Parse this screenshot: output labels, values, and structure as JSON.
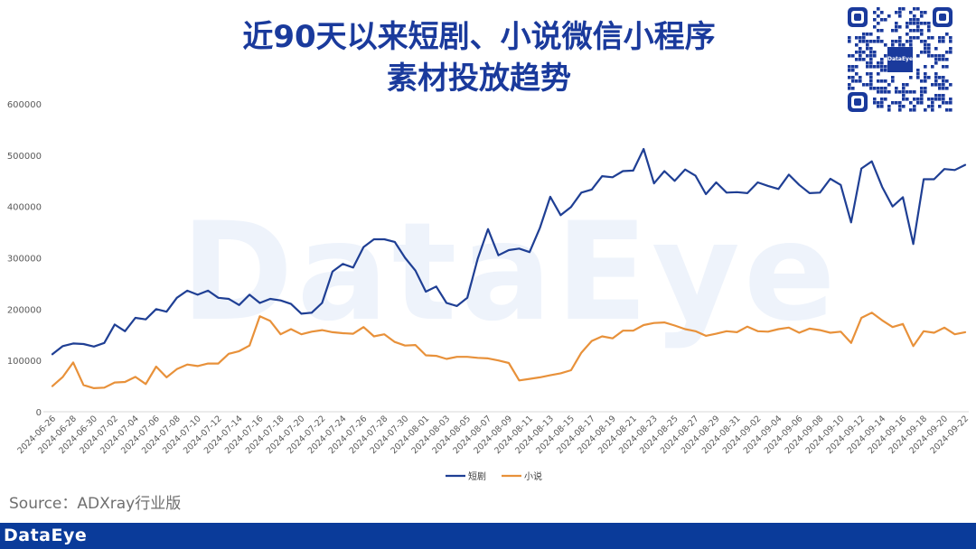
{
  "title_line1": "近90天以来短剧、小说微信小程序",
  "title_line2": "素材投放趋势",
  "watermark": "DataEye",
  "qr_label": "DataEye",
  "source": "Source：ADXray行业版",
  "footer_brand": "DataEye",
  "colors": {
    "primary": "#1a3a9c",
    "short_drama": "#1f3f94",
    "novel": "#e8913a",
    "footer": "#0a3b9a"
  },
  "chart_data": {
    "type": "line",
    "ylim": [
      0,
      600000
    ],
    "yticks": [
      0,
      100000,
      200000,
      300000,
      400000,
      500000,
      600000
    ],
    "grid": false,
    "legend_position": "bottom",
    "x": [
      "2024-06-26",
      "2024-06-27",
      "2024-06-28",
      "2024-06-29",
      "2024-06-30",
      "2024-07-01",
      "2024-07-02",
      "2024-07-03",
      "2024-07-04",
      "2024-07-05",
      "2024-07-06",
      "2024-07-07",
      "2024-07-08",
      "2024-07-09",
      "2024-07-10",
      "2024-07-11",
      "2024-07-12",
      "2024-07-13",
      "2024-07-14",
      "2024-07-15",
      "2024-07-16",
      "2024-07-17",
      "2024-07-18",
      "2024-07-19",
      "2024-07-20",
      "2024-07-21",
      "2024-07-22",
      "2024-07-23",
      "2024-07-24",
      "2024-07-25",
      "2024-07-26",
      "2024-07-27",
      "2024-07-28",
      "2024-07-29",
      "2024-07-30",
      "2024-07-31",
      "2024-08-01",
      "2024-08-02",
      "2024-08-03",
      "2024-08-04",
      "2024-08-05",
      "2024-08-06",
      "2024-08-07",
      "2024-08-08",
      "2024-08-09",
      "2024-08-10",
      "2024-08-11",
      "2024-08-12",
      "2024-08-13",
      "2024-08-14",
      "2024-08-15",
      "2024-08-16",
      "2024-08-17",
      "2024-08-18",
      "2024-08-19",
      "2024-08-20",
      "2024-08-21",
      "2024-08-22",
      "2024-08-23",
      "2024-08-24",
      "2024-08-25",
      "2024-08-26",
      "2024-08-27",
      "2024-08-28",
      "2024-08-29",
      "2024-08-30",
      "2024-08-31",
      "2024-09-01",
      "2024-09-02",
      "2024-09-03",
      "2024-09-04",
      "2024-09-05",
      "2024-09-06",
      "2024-09-07",
      "2024-09-08",
      "2024-09-09",
      "2024-09-10",
      "2024-09-11",
      "2024-09-12",
      "2024-09-13",
      "2024-09-14",
      "2024-09-15",
      "2024-09-16",
      "2024-09-17",
      "2024-09-18",
      "2024-09-19",
      "2024-09-20",
      "2024-09-21",
      "2024-09-22"
    ],
    "xtick_labels": [
      "2024-06-26",
      "2024-06-28",
      "2024-06-30",
      "2024-07-02",
      "2024-07-04",
      "2024-07-06",
      "2024-07-08",
      "2024-07-10",
      "2024-07-12",
      "2024-07-14",
      "2024-07-16",
      "2024-07-18",
      "2024-07-20",
      "2024-07-22",
      "2024-07-24",
      "2024-07-26",
      "2024-07-28",
      "2024-07-30",
      "2024-08-01",
      "2024-08-03",
      "2024-08-05",
      "2024-08-07",
      "2024-08-09",
      "2024-08-11",
      "2024-08-13",
      "2024-08-15",
      "2024-08-17",
      "2024-08-19",
      "2024-08-21",
      "2024-08-23",
      "2024-08-25",
      "2024-08-27",
      "2024-08-29",
      "2024-08-31",
      "2024-09-02",
      "2024-09-04",
      "2024-09-06",
      "2024-09-08",
      "2024-09-10",
      "2024-09-12",
      "2024-09-14",
      "2024-09-16",
      "2024-09-18",
      "2024-09-20",
      "2024-09-22"
    ],
    "series": [
      {
        "name": "短剧",
        "color": "#1f3f94",
        "values": [
          112000,
          128000,
          133000,
          132000,
          127000,
          134000,
          170000,
          157000,
          183000,
          180000,
          200000,
          195000,
          222000,
          236000,
          228000,
          236000,
          222000,
          220000,
          208000,
          228000,
          212000,
          220000,
          217000,
          210000,
          191000,
          193000,
          212000,
          273000,
          288000,
          281000,
          321000,
          336000,
          336000,
          331000,
          300000,
          275000,
          234000,
          244000,
          212000,
          206000,
          222000,
          298000,
          356000,
          305000,
          315000,
          318000,
          311000,
          358000,
          419000,
          383000,
          399000,
          427000,
          433000,
          459000,
          457000,
          469000,
          470000,
          512000,
          445000,
          469000,
          450000,
          472000,
          460000,
          424000,
          447000,
          427000,
          428000,
          426000,
          447000,
          440000,
          434000,
          462000,
          442000,
          426000,
          427000,
          454000,
          442000,
          369000,
          474000,
          488000,
          438000,
          400000,
          418000,
          327000,
          453000,
          453000,
          473000,
          471000,
          481000
        ]
      },
      {
        "name": "小说",
        "color": "#e8913a",
        "values": [
          50000,
          68000,
          96000,
          52000,
          46000,
          47000,
          57000,
          58000,
          68000,
          54000,
          88000,
          67000,
          83000,
          92000,
          89000,
          94000,
          94000,
          113000,
          118000,
          129000,
          186000,
          177000,
          151000,
          161000,
          151000,
          156000,
          159000,
          155000,
          153000,
          152000,
          165000,
          147000,
          151000,
          136000,
          129000,
          130000,
          110000,
          109000,
          103000,
          107000,
          107000,
          105000,
          104000,
          100000,
          95000,
          61000,
          64000,
          67000,
          71000,
          75000,
          81000,
          115000,
          138000,
          147000,
          143000,
          158000,
          158000,
          169000,
          173000,
          174000,
          168000,
          161000,
          157000,
          148000,
          152000,
          157000,
          155000,
          166000,
          157000,
          156000,
          161000,
          164000,
          154000,
          162000,
          159000,
          154000,
          156000,
          134000,
          183000,
          193000,
          178000,
          165000,
          171000,
          128000,
          157000,
          154000,
          164000,
          151000,
          155000
        ]
      }
    ]
  }
}
